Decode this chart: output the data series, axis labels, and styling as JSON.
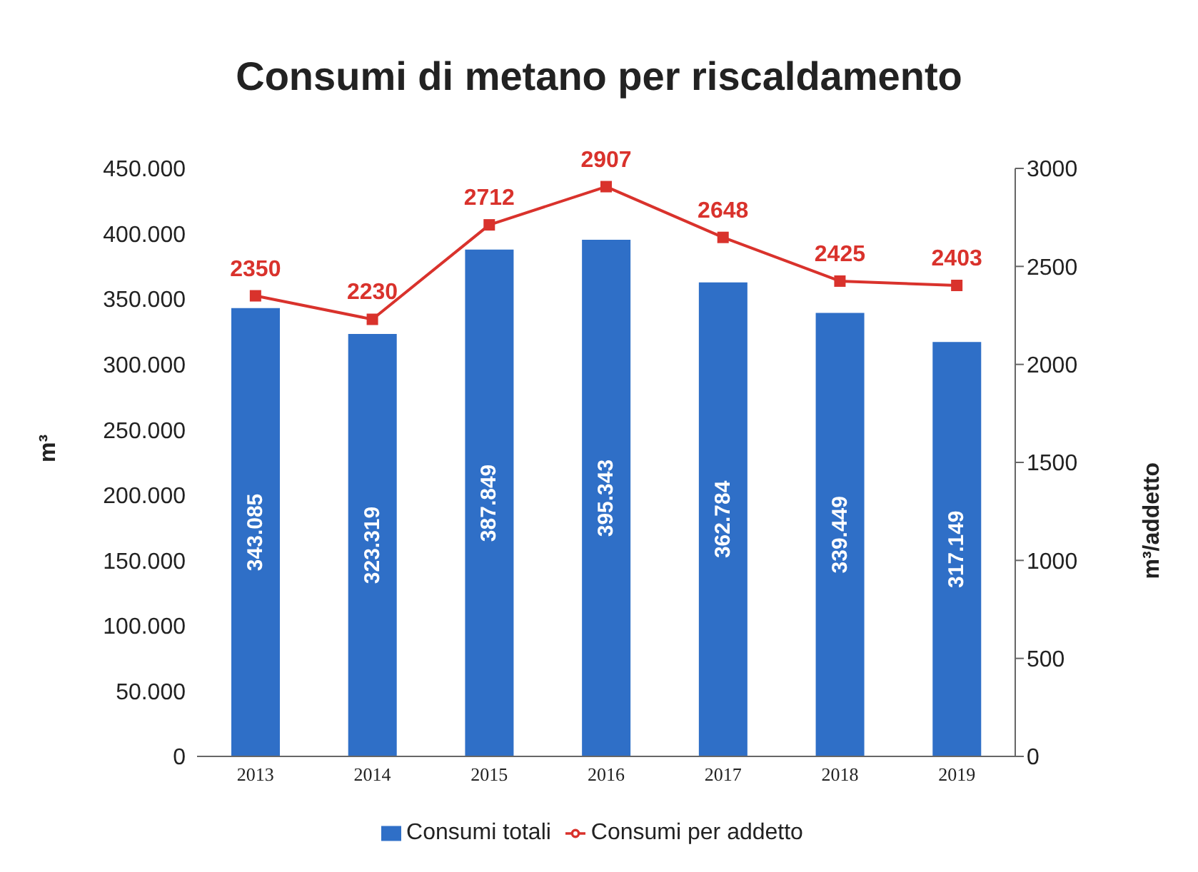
{
  "chart_data": {
    "type": "bar",
    "title": "Consumi di metano per riscaldamento",
    "ylabel": "m³",
    "y2label": "m³/addetto",
    "categories": [
      "2013",
      "2014",
      "2015",
      "2016",
      "2017",
      "2018",
      "2019"
    ],
    "series": [
      {
        "name": "Consumi totali",
        "color": "#2f6fc7",
        "values": [
          343085,
          323319,
          387849,
          395343,
          362784,
          339449,
          317149
        ],
        "value_labels": [
          "343.085",
          "323.319",
          "387.849",
          "395.343",
          "362.784",
          "339.449",
          "317.149"
        ]
      },
      {
        "name": "Consumi per addetto",
        "type": "line",
        "axis": "y2",
        "color": "#d9322c",
        "values": [
          2350,
          2230,
          2712,
          2907,
          2648,
          2425,
          2403
        ],
        "value_labels": [
          "2350",
          "2230",
          "2712",
          "2907",
          "2648",
          "2425",
          "2403"
        ]
      }
    ],
    "ylim": [
      0,
      450000
    ],
    "yticks": [
      0,
      {
        "value": 50000,
        "label": "50.000"
      },
      {
        "value": 100000,
        "label": "100.000"
      },
      {
        "value": 150000,
        "label": "150.000"
      },
      {
        "value": 200000,
        "label": "200.000"
      },
      {
        "value": 250000,
        "label": "250.000"
      },
      {
        "value": 300000,
        "label": "300.000"
      },
      {
        "value": 350000,
        "label": "350.000"
      },
      {
        "value": 400000,
        "label": "400.000"
      },
      {
        "value": 450000,
        "label": "450.000"
      }
    ],
    "y2lim": [
      0,
      3000
    ],
    "y2ticks": [
      0,
      500,
      1000,
      1500,
      2000,
      2500,
      3000
    ],
    "grid": false,
    "legend": "bottom",
    "marker": "square"
  }
}
